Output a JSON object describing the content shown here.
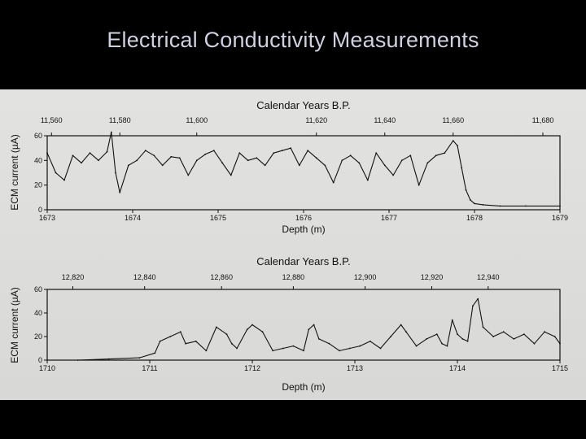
{
  "slide": {
    "title": "Electrical Conductivity Measurements"
  },
  "chart_data": [
    {
      "type": "line",
      "title": "Calendar Years B.P.",
      "xlabel": "Depth (m)",
      "ylabel": "ECM current (µA)",
      "xlim": [
        1673,
        1679
      ],
      "ylim": [
        0,
        60
      ],
      "x_ticks": [
        "1673",
        "1674",
        "1675",
        "1676",
        "1677",
        "1678",
        "1679"
      ],
      "y_ticks": [
        "0",
        "20",
        "40",
        "60"
      ],
      "top_axis_ticks": [
        "11,560",
        "11,580",
        "11,600",
        "11,620",
        "11,640",
        "11,660",
        "11,680"
      ],
      "top_axis_tick_depths": [
        1673.05,
        1673.85,
        1674.75,
        1676.15,
        1676.95,
        1677.75,
        1678.8
      ],
      "series": [
        {
          "values": [
            [
              1673.0,
              46
            ],
            [
              1673.1,
              30
            ],
            [
              1673.2,
              24
            ],
            [
              1673.3,
              44
            ],
            [
              1673.4,
              38
            ],
            [
              1673.5,
              46
            ],
            [
              1673.6,
              40
            ],
            [
              1673.7,
              47
            ],
            [
              1673.75,
              63
            ],
            [
              1673.8,
              30
            ],
            [
              1673.85,
              14
            ],
            [
              1673.95,
              36
            ],
            [
              1674.05,
              40
            ],
            [
              1674.15,
              48
            ],
            [
              1674.25,
              44
            ],
            [
              1674.35,
              36
            ],
            [
              1674.45,
              43
            ],
            [
              1674.55,
              42
            ],
            [
              1674.65,
              28
            ],
            [
              1674.75,
              40
            ],
            [
              1674.85,
              45
            ],
            [
              1674.95,
              48
            ],
            [
              1675.05,
              38
            ],
            [
              1675.15,
              28
            ],
            [
              1675.25,
              46
            ],
            [
              1675.35,
              40
            ],
            [
              1675.45,
              42
            ],
            [
              1675.55,
              36
            ],
            [
              1675.65,
              46
            ],
            [
              1675.75,
              48
            ],
            [
              1675.85,
              50
            ],
            [
              1675.95,
              36
            ],
            [
              1676.05,
              48
            ],
            [
              1676.15,
              42
            ],
            [
              1676.25,
              36
            ],
            [
              1676.35,
              22
            ],
            [
              1676.45,
              40
            ],
            [
              1676.55,
              44
            ],
            [
              1676.65,
              38
            ],
            [
              1676.75,
              24
            ],
            [
              1676.85,
              46
            ],
            [
              1676.95,
              36
            ],
            [
              1677.05,
              28
            ],
            [
              1677.15,
              40
            ],
            [
              1677.25,
              44
            ],
            [
              1677.35,
              20
            ],
            [
              1677.45,
              38
            ],
            [
              1677.55,
              44
            ],
            [
              1677.65,
              46
            ],
            [
              1677.75,
              56
            ],
            [
              1677.8,
              52
            ],
            [
              1677.85,
              34
            ],
            [
              1677.9,
              16
            ],
            [
              1677.95,
              8
            ],
            [
              1678.0,
              5
            ],
            [
              1678.1,
              4
            ],
            [
              1678.3,
              3
            ],
            [
              1678.6,
              3
            ],
            [
              1679.0,
              3
            ]
          ]
        }
      ]
    },
    {
      "type": "line",
      "title": "Calendar Years B.P.",
      "xlabel": "Depth (m)",
      "ylabel": "ECM current (µA)",
      "xlim": [
        1710,
        1715
      ],
      "ylim": [
        0,
        60
      ],
      "x_ticks": [
        "1710",
        "1711",
        "1712",
        "1713",
        "1714",
        "1715"
      ],
      "y_ticks": [
        "0",
        "20",
        "40",
        "60"
      ],
      "top_axis_ticks": [
        "12,820",
        "12,840",
        "12,860",
        "12,880",
        "12,900",
        "12,920",
        "12,940"
      ],
      "top_axis_tick_depths": [
        1710.25,
        1710.95,
        1711.7,
        1712.4,
        1713.1,
        1713.75,
        1714.3
      ],
      "series": [
        {
          "values": [
            [
              1710.0,
              0
            ],
            [
              1710.3,
              0
            ],
            [
              1710.6,
              1
            ],
            [
              1710.9,
              2
            ],
            [
              1711.05,
              6
            ],
            [
              1711.1,
              16
            ],
            [
              1711.2,
              20
            ],
            [
              1711.3,
              24
            ],
            [
              1711.35,
              14
            ],
            [
              1711.45,
              16
            ],
            [
              1711.55,
              8
            ],
            [
              1711.65,
              28
            ],
            [
              1711.75,
              22
            ],
            [
              1711.8,
              14
            ],
            [
              1711.85,
              10
            ],
            [
              1711.95,
              26
            ],
            [
              1712.0,
              30
            ],
            [
              1712.1,
              24
            ],
            [
              1712.2,
              8
            ],
            [
              1712.3,
              10
            ],
            [
              1712.4,
              12
            ],
            [
              1712.5,
              8
            ],
            [
              1712.55,
              26
            ],
            [
              1712.6,
              30
            ],
            [
              1712.65,
              18
            ],
            [
              1712.75,
              14
            ],
            [
              1712.85,
              8
            ],
            [
              1712.95,
              10
            ],
            [
              1713.05,
              12
            ],
            [
              1713.15,
              16
            ],
            [
              1713.25,
              10
            ],
            [
              1713.35,
              20
            ],
            [
              1713.45,
              30
            ],
            [
              1713.5,
              24
            ],
            [
              1713.6,
              12
            ],
            [
              1713.7,
              18
            ],
            [
              1713.8,
              22
            ],
            [
              1713.85,
              14
            ],
            [
              1713.9,
              12
            ],
            [
              1713.95,
              34
            ],
            [
              1714.0,
              22
            ],
            [
              1714.05,
              18
            ],
            [
              1714.1,
              16
            ],
            [
              1714.15,
              46
            ],
            [
              1714.2,
              52
            ],
            [
              1714.25,
              28
            ],
            [
              1714.35,
              20
            ],
            [
              1714.45,
              24
            ],
            [
              1714.55,
              18
            ],
            [
              1714.65,
              22
            ],
            [
              1714.75,
              14
            ],
            [
              1714.85,
              24
            ],
            [
              1714.95,
              20
            ],
            [
              1715.0,
              14
            ]
          ]
        }
      ]
    }
  ]
}
